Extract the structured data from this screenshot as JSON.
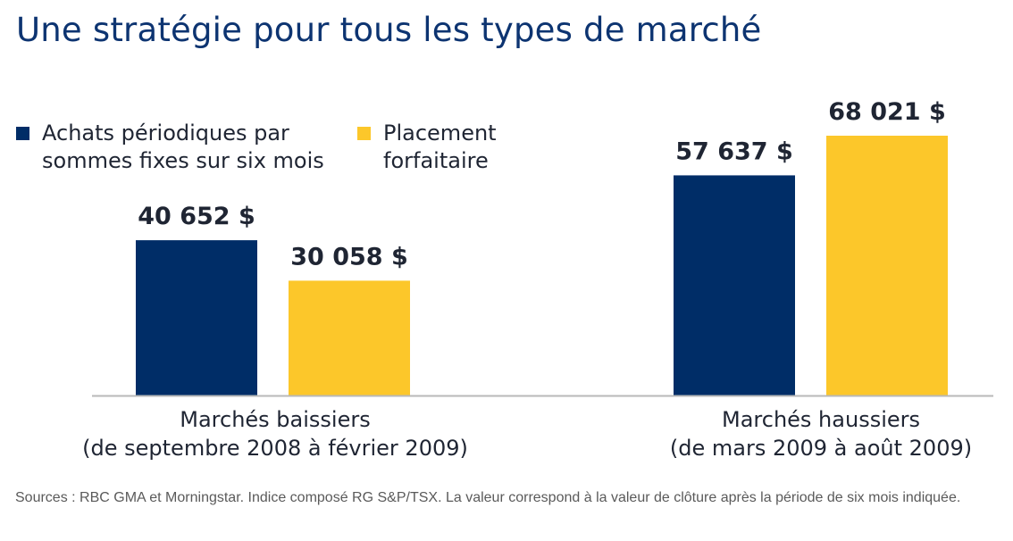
{
  "title": "Une stratégie pour tous les types de marché",
  "chart_data": {
    "type": "bar",
    "categories": [
      "Marchés baissiers\n(de septembre 2008 à février 2009)",
      "Marchés haussiers\n(de mars 2009 à août 2009)"
    ],
    "series": [
      {
        "name": "Achats périodiques par sommes fixes sur six mois",
        "color": "#002d67",
        "values": [
          40652,
          57637
        ],
        "labels": [
          "40 652 $",
          "57 637 $"
        ]
      },
      {
        "name": "Placement forfaitaire",
        "color": "#fcc72a",
        "values": [
          30058,
          68021
        ],
        "labels": [
          "30 058 $",
          "68 021 $"
        ]
      }
    ],
    "ylim": [
      0,
      70000
    ],
    "grid": false,
    "legend": "top-left"
  },
  "legend": {
    "item1": "Achats périodiques par\nsommes fixes sur six mois",
    "item2": "Placement\nforfaitaire"
  },
  "footnote": "Sources : RBC GMA et Morningstar. Indice composé RG S&P/TSX. La valeur correspond à la valeur de clôture après la période de six mois indiquée."
}
